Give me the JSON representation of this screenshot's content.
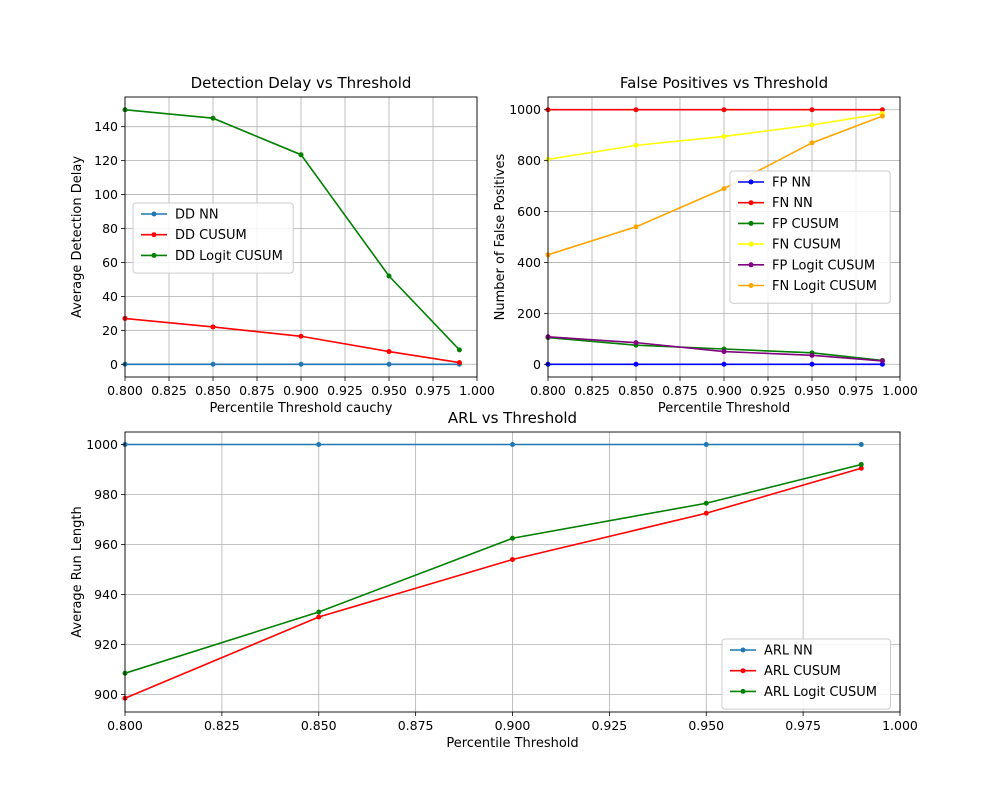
{
  "chart_data": [
    {
      "id": "dd",
      "type": "line",
      "title": "Detection Delay vs Threshold",
      "xlabel": "Percentile Threshold cauchy",
      "ylabel": "Average Detection Delay",
      "xlim": [
        0.8,
        1.0
      ],
      "ylim": [
        -7.5,
        157.5
      ],
      "xticks": [
        0.8,
        0.825,
        0.85,
        0.875,
        0.9,
        0.925,
        0.95,
        0.975,
        1.0
      ],
      "xtick_labels": [
        "0.800",
        "0.825",
        "0.850",
        "0.875",
        "0.900",
        "0.925",
        "0.950",
        "0.975",
        "1.000"
      ],
      "yticks": [
        0,
        20,
        40,
        60,
        80,
        100,
        120,
        140
      ],
      "ytick_labels": [
        "0",
        "20",
        "40",
        "60",
        "80",
        "100",
        "120",
        "140"
      ],
      "grid": true,
      "legend": "center-left",
      "x": [
        0.8,
        0.85,
        0.9,
        0.95,
        0.99
      ],
      "series": [
        {
          "name": "DD NN",
          "color": "#1f77b4",
          "values": [
            0,
            0,
            0,
            0,
            0
          ]
        },
        {
          "name": "DD CUSUM",
          "color": "#ff0000",
          "values": [
            27,
            22,
            16.5,
            7.5,
            1
          ]
        },
        {
          "name": "DD Logit CUSUM",
          "color": "#008000",
          "values": [
            150,
            145,
            123.5,
            52,
            8.5
          ]
        }
      ]
    },
    {
      "id": "fp",
      "type": "line",
      "title": "False Positives vs Threshold",
      "xlabel": "Percentile Threshold",
      "ylabel": "Number of False Positives",
      "xlim": [
        0.8,
        1.0
      ],
      "ylim": [
        -50,
        1050
      ],
      "xticks": [
        0.8,
        0.825,
        0.85,
        0.875,
        0.9,
        0.925,
        0.95,
        0.975,
        1.0
      ],
      "xtick_labels": [
        "0.800",
        "0.825",
        "0.850",
        "0.875",
        "0.900",
        "0.925",
        "0.950",
        "0.975",
        "1.000"
      ],
      "yticks": [
        0,
        200,
        400,
        600,
        800,
        1000
      ],
      "ytick_labels": [
        "0",
        "200",
        "400",
        "600",
        "800",
        "1000"
      ],
      "grid": true,
      "legend": "center-right",
      "x": [
        0.8,
        0.85,
        0.9,
        0.95,
        0.99
      ],
      "series": [
        {
          "name": "FP NN",
          "color": "#0000ff",
          "values": [
            0,
            0,
            0,
            0,
            0
          ]
        },
        {
          "name": "FN NN",
          "color": "#ff0000",
          "values": [
            1000,
            1000,
            1000,
            1000,
            1000
          ]
        },
        {
          "name": "FP CUSUM",
          "color": "#008000",
          "values": [
            105,
            75,
            60,
            45,
            15
          ]
        },
        {
          "name": "FN CUSUM",
          "color": "#ffff00",
          "values": [
            805,
            860,
            895,
            940,
            985
          ]
        },
        {
          "name": "FP Logit CUSUM",
          "color": "#800080",
          "values": [
            108,
            85,
            50,
            35,
            13
          ]
        },
        {
          "name": "FN Logit CUSUM",
          "color": "#ffa500",
          "values": [
            430,
            540,
            690,
            870,
            975
          ]
        }
      ]
    },
    {
      "id": "arl",
      "type": "line",
      "title": "ARL vs Threshold",
      "xlabel": "Percentile Threshold",
      "ylabel": "Average Run Length",
      "xlim": [
        0.8,
        1.0
      ],
      "ylim": [
        893,
        1005
      ],
      "xticks": [
        0.8,
        0.825,
        0.85,
        0.875,
        0.9,
        0.925,
        0.95,
        0.975,
        1.0
      ],
      "xtick_labels": [
        "0.800",
        "0.825",
        "0.850",
        "0.875",
        "0.900",
        "0.925",
        "0.950",
        "0.975",
        "1.000"
      ],
      "yticks": [
        900,
        920,
        940,
        960,
        980,
        1000
      ],
      "ytick_labels": [
        "900",
        "920",
        "940",
        "960",
        "980",
        "1000"
      ],
      "grid": true,
      "legend": "lower-right",
      "x": [
        0.8,
        0.85,
        0.9,
        0.95,
        0.99
      ],
      "series": [
        {
          "name": "ARL NN",
          "color": "#1f77b4",
          "values": [
            1000,
            1000,
            1000,
            1000,
            1000
          ]
        },
        {
          "name": "ARL CUSUM",
          "color": "#ff0000",
          "values": [
            898.5,
            931,
            954,
            972.5,
            990.5
          ]
        },
        {
          "name": "ARL Logit CUSUM",
          "color": "#008000",
          "values": [
            908.5,
            933,
            962.5,
            976.5,
            992
          ]
        }
      ]
    }
  ]
}
